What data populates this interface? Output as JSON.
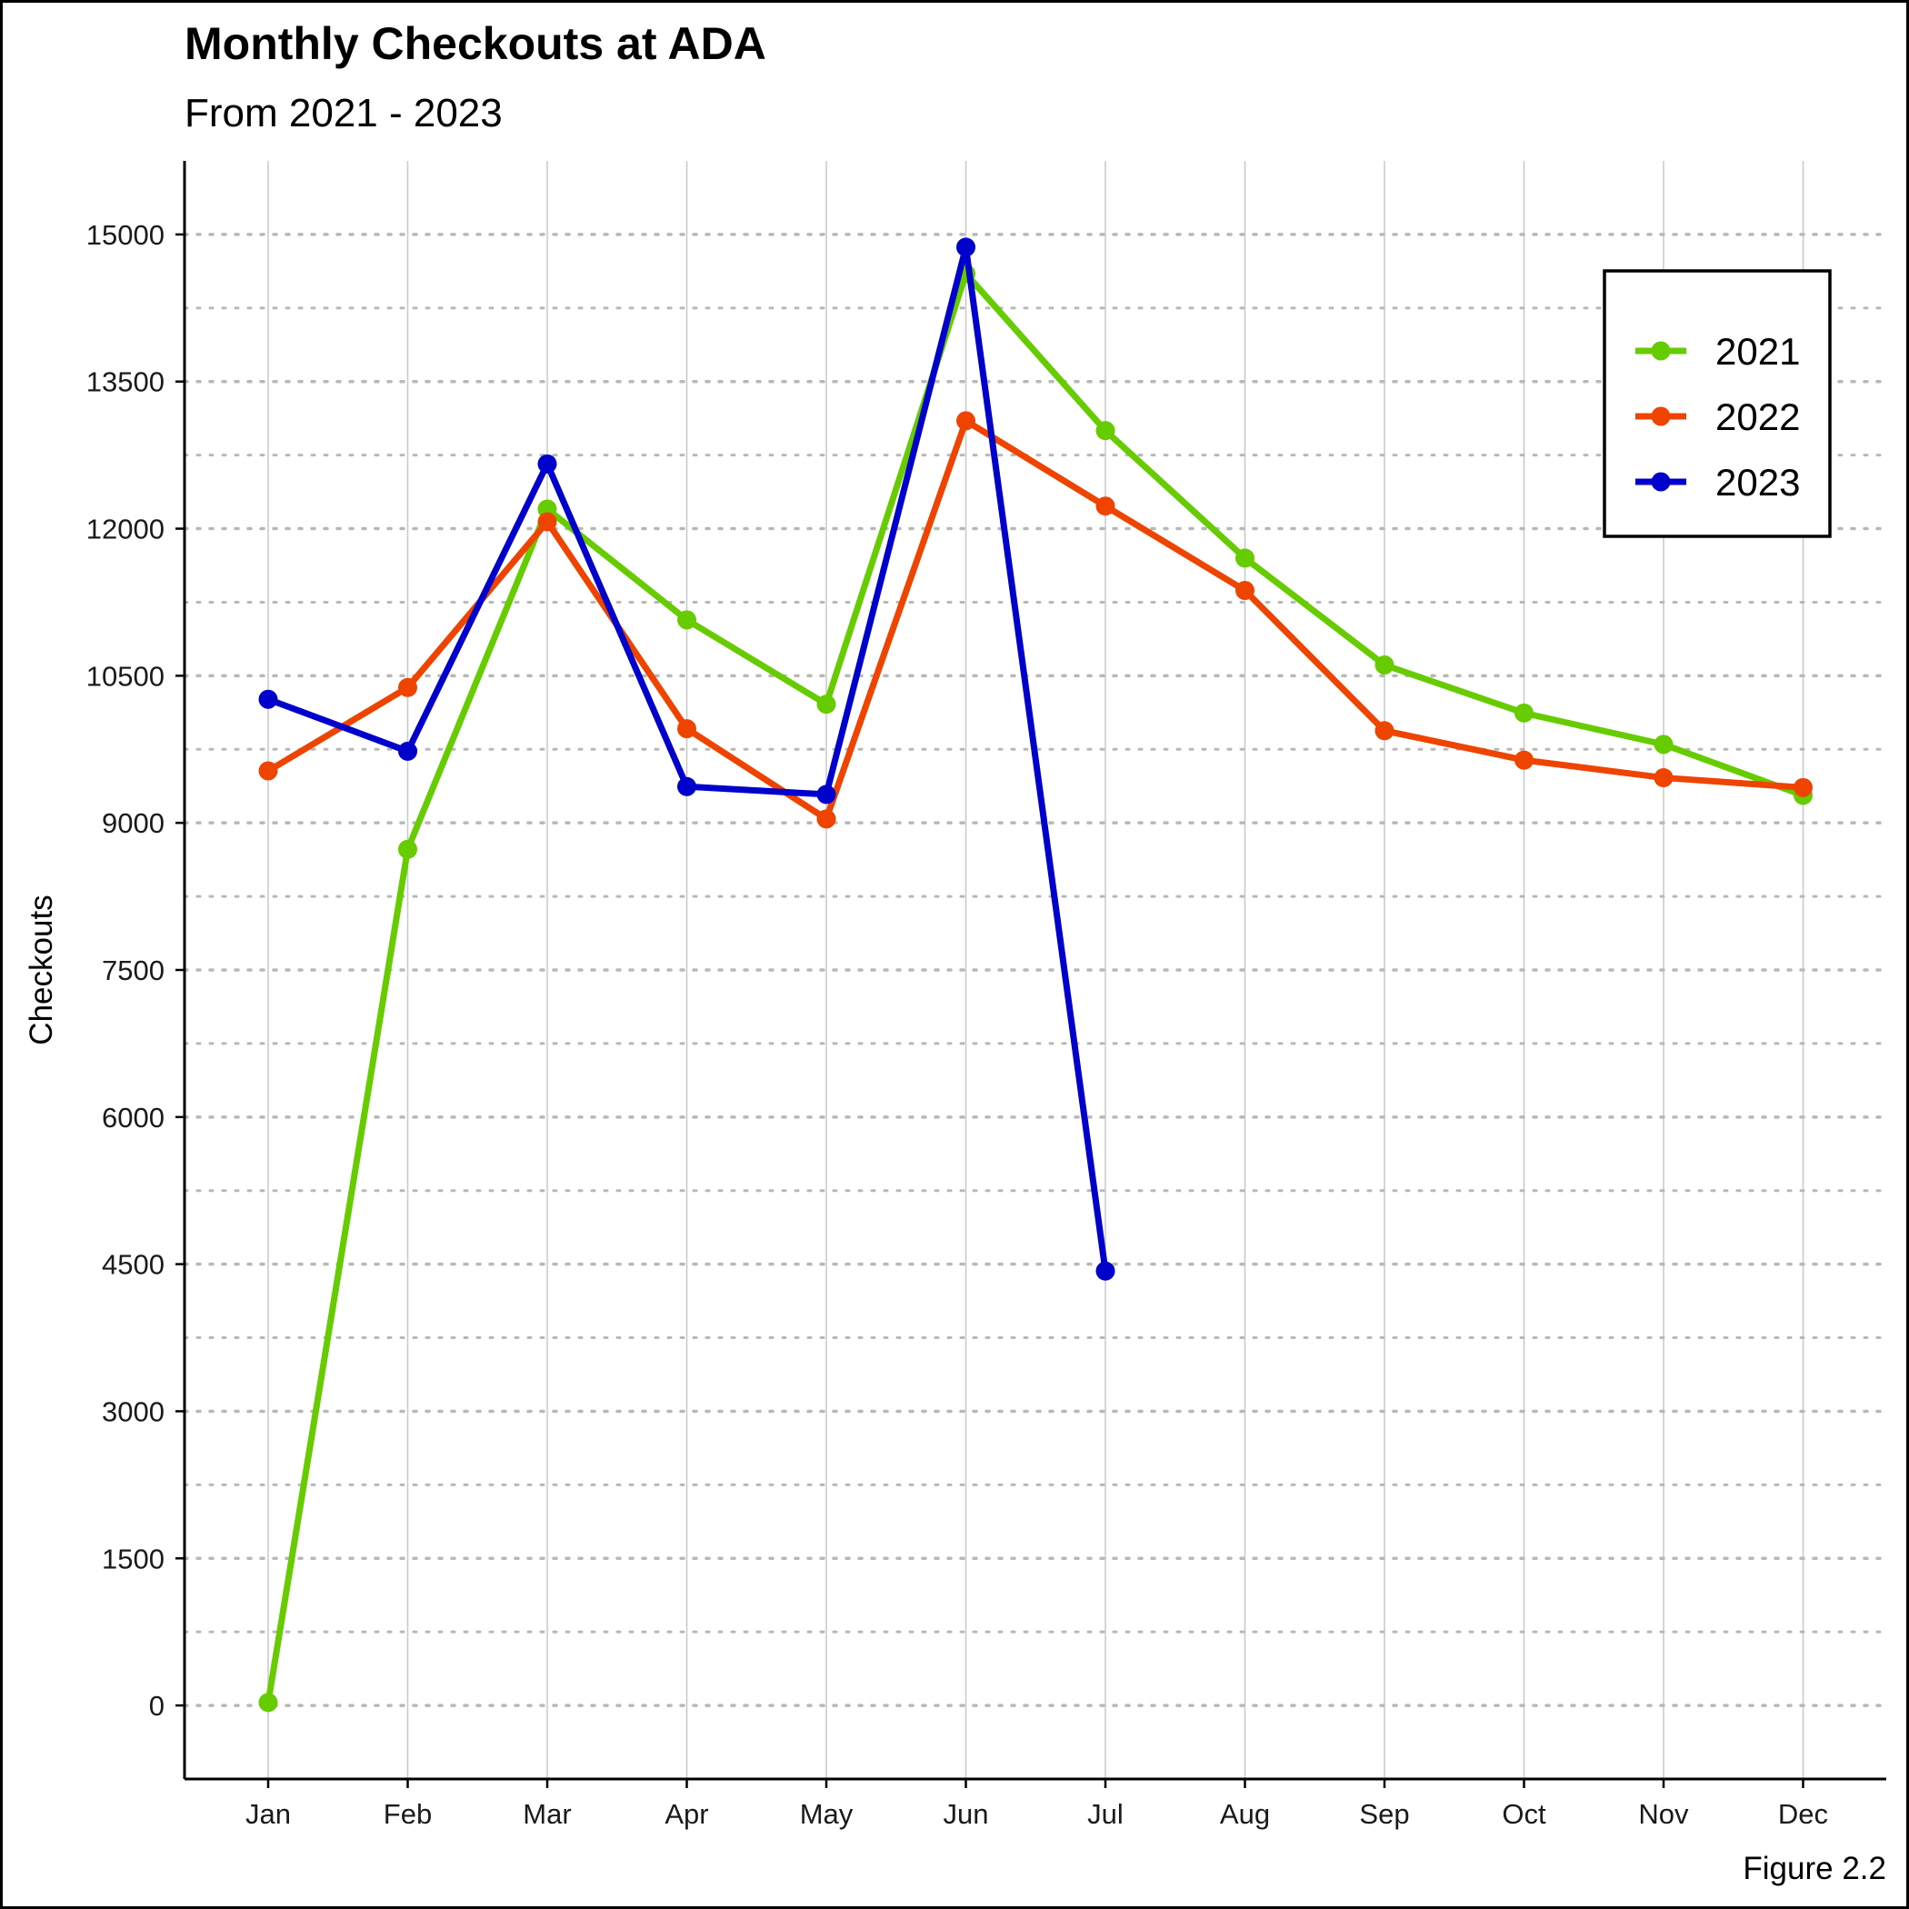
{
  "chart_data": {
    "type": "line",
    "title": "Monthly Checkouts at ADA",
    "subtitle": "From 2021 - 2023",
    "ylabel": "Checkouts",
    "xlabel": "",
    "caption": "Figure 2.2",
    "categories": [
      "Jan",
      "Feb",
      "Mar",
      "Apr",
      "May",
      "Jun",
      "Jul",
      "Aug",
      "Sep",
      "Oct",
      "Nov",
      "Dec"
    ],
    "ylim": [
      -750,
      15750
    ],
    "yticks": [
      0,
      1500,
      3000,
      4500,
      6000,
      7500,
      9000,
      10500,
      12000,
      13500,
      15000
    ],
    "ytick_labels": [
      "0",
      "1500",
      "3000",
      "4500",
      "6000",
      "7500",
      "9000",
      "10500",
      "12000",
      "13500",
      "15000"
    ],
    "minor_yticks": [
      750,
      2250,
      3750,
      5250,
      6750,
      8250,
      9750,
      11250,
      12750,
      14250
    ],
    "grid": {
      "major_y": "dotted",
      "minor_y": "dotted",
      "x": "solid"
    },
    "legend_position": "top-right",
    "series": [
      {
        "name": "2021",
        "color": "#66CC00",
        "values": [
          30,
          8730,
          12200,
          11070,
          10210,
          14600,
          13000,
          11700,
          10610,
          10120,
          9800,
          9280
        ]
      },
      {
        "name": "2022",
        "color": "#EE4400",
        "values": [
          9530,
          10380,
          12070,
          9960,
          9040,
          13100,
          12230,
          11370,
          9940,
          9640,
          9460,
          9360
        ]
      },
      {
        "name": "2023",
        "color": "#0000CC",
        "values": [
          10260,
          9730,
          12660,
          9370,
          9290,
          14870,
          4430,
          null,
          null,
          null,
          null,
          null
        ]
      }
    ]
  }
}
